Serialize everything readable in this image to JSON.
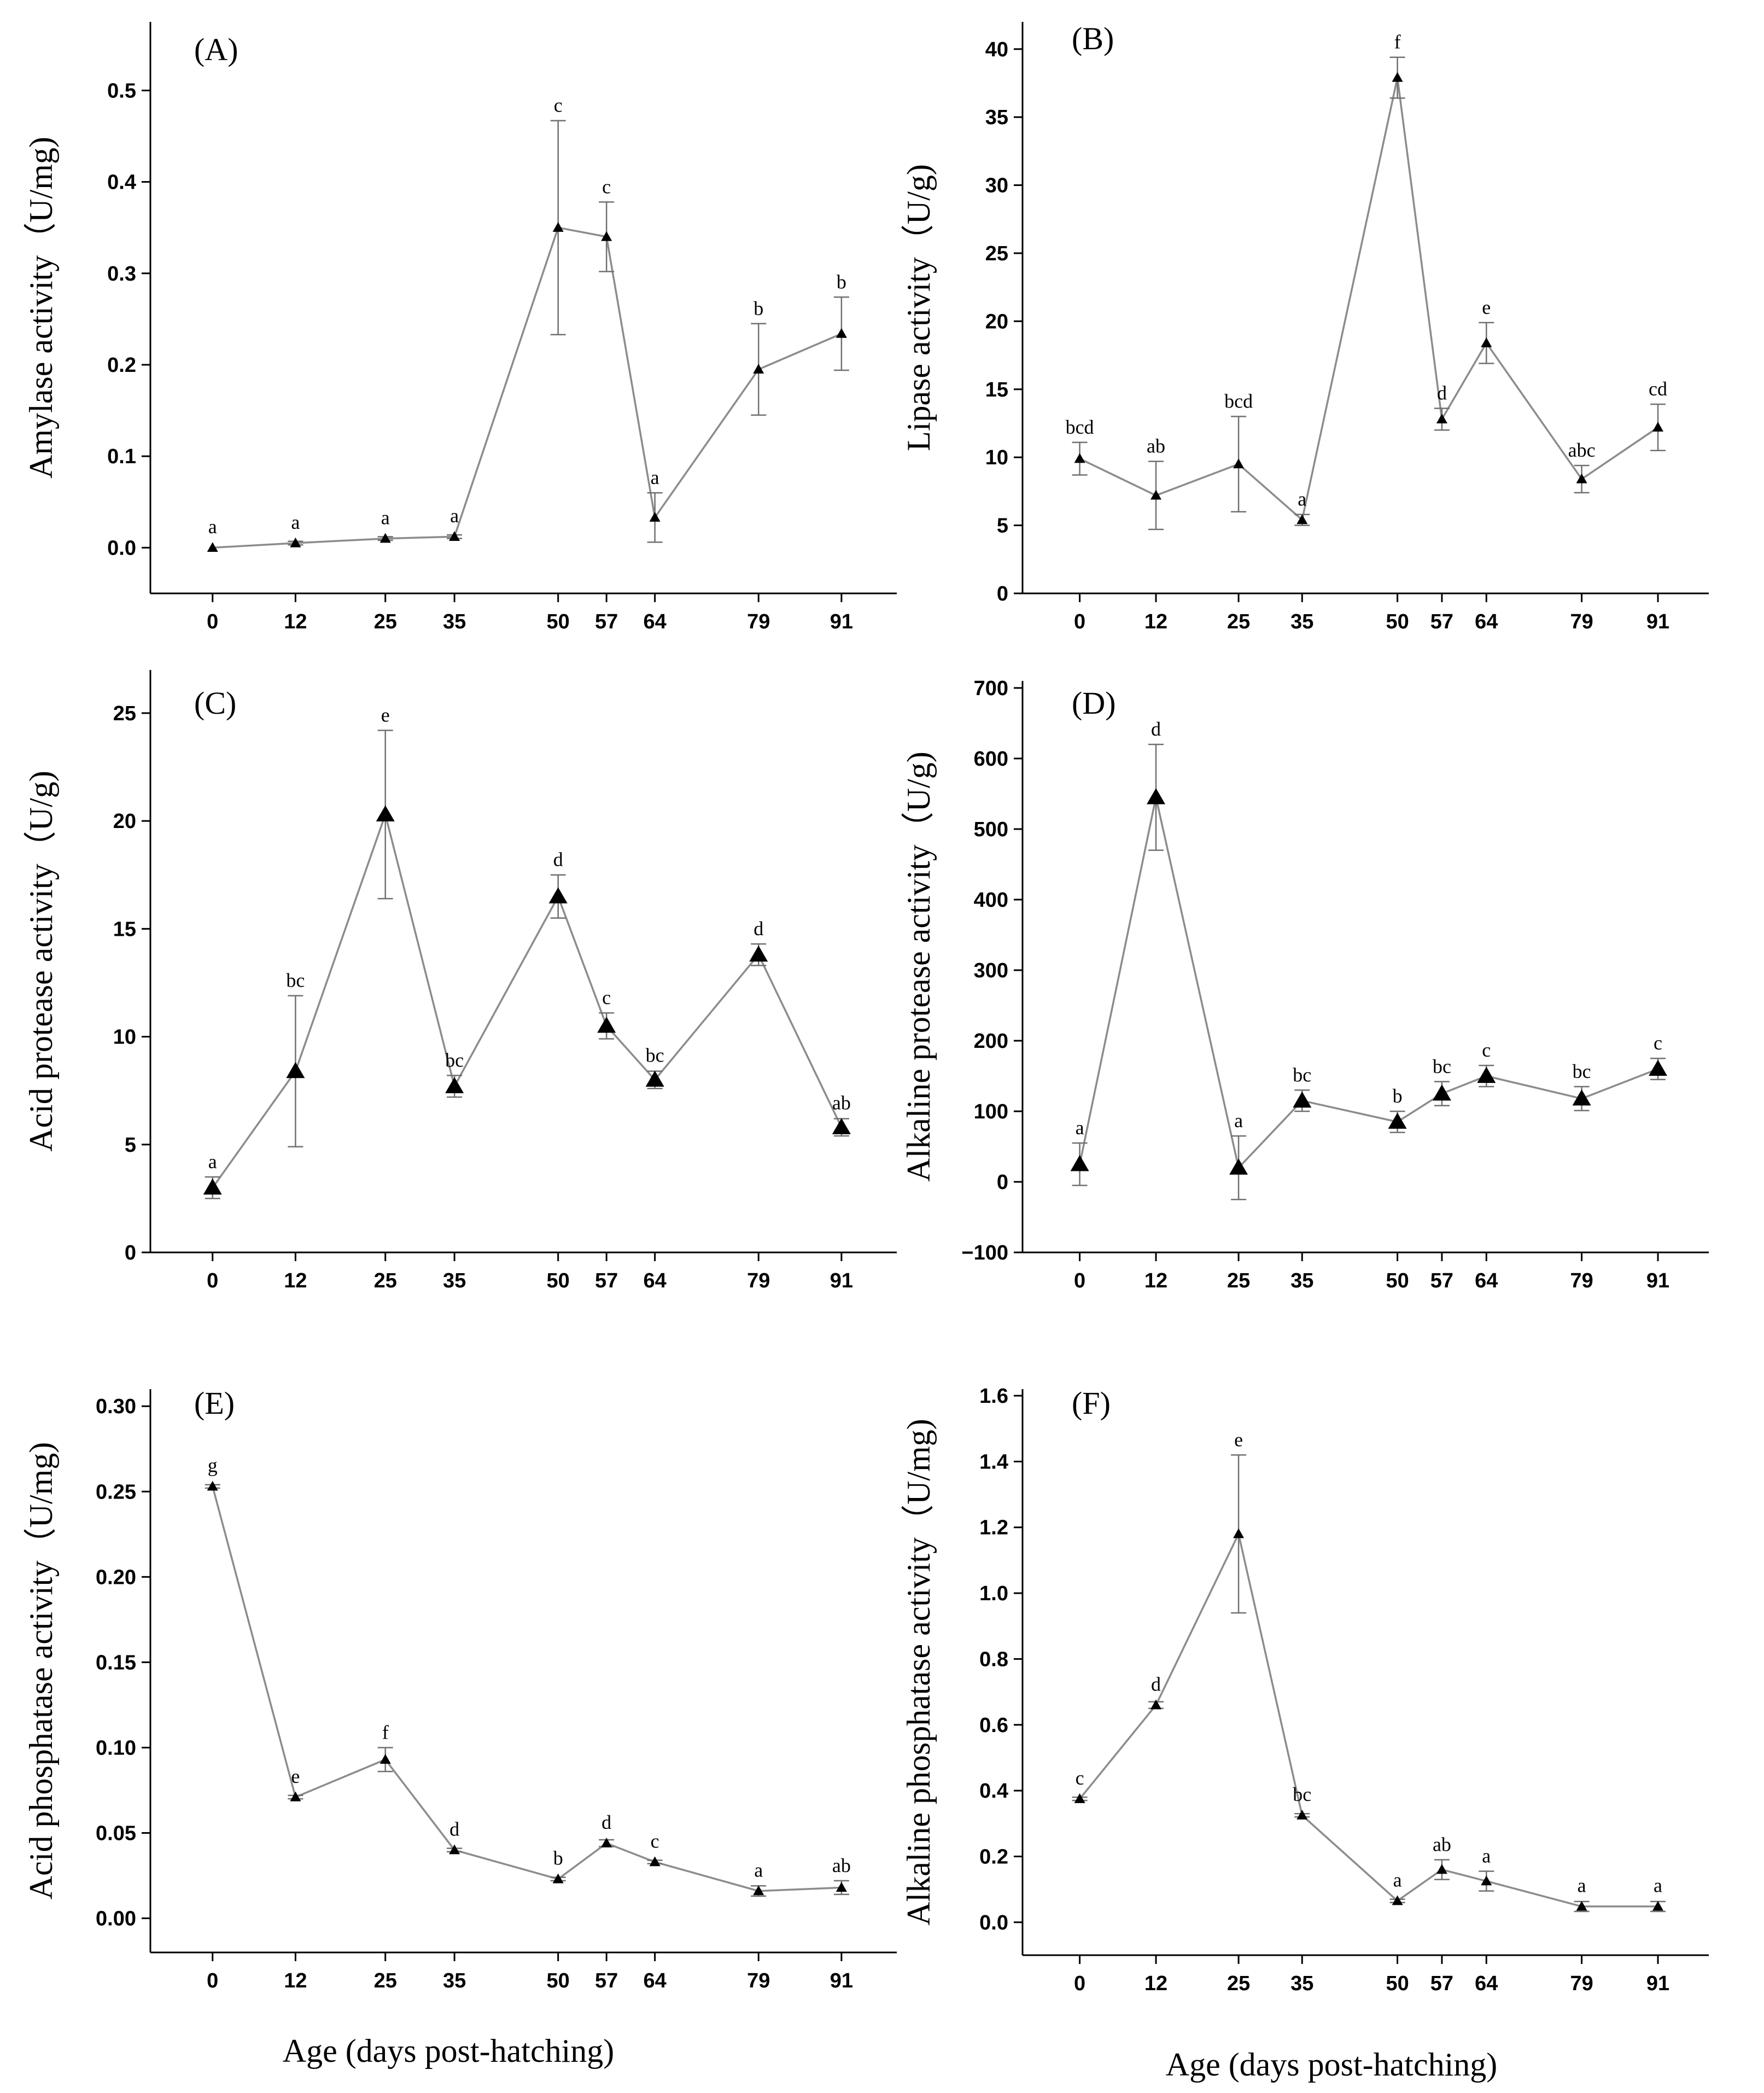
{
  "figure": {
    "xlabel_left": "Age (days post-hatching)",
    "xlabel_right": "Age (days post-hatching)",
    "colors": {
      "line": "#8c8c8c",
      "marker": "#000000",
      "axis": "#000000",
      "errorbar": "#707070"
    }
  },
  "chart_data": [
    {
      "type": "line",
      "panel": "(A)",
      "ylabel": "Amylase activity（U/mg)",
      "xlabel": "",
      "x": [
        0,
        12,
        25,
        35,
        50,
        57,
        64,
        79,
        91
      ],
      "xlim": [
        -9,
        99
      ],
      "ylim": [
        -0.05,
        0.575
      ],
      "yticks": [
        0.0,
        0.1,
        0.2,
        0.3,
        0.4,
        0.5
      ],
      "ytick_labels": [
        "0.0",
        "0.1",
        "0.2",
        "0.3",
        "0.4",
        "0.5"
      ],
      "series": [
        {
          "values": [
            0.0,
            0.005,
            0.01,
            0.012,
            0.35,
            0.34,
            0.033,
            0.195,
            0.234
          ],
          "errors": [
            0.0,
            0.002,
            0.002,
            0.002,
            0.117,
            0.038,
            0.027,
            0.05,
            0.04
          ],
          "letters": [
            "a",
            "a",
            "a",
            "a",
            "c",
            "c",
            "a",
            "b",
            "b"
          ]
        }
      ],
      "marker_size": "small"
    },
    {
      "type": "line",
      "panel": "(B)",
      "ylabel": "Lipase activity（U/g)",
      "xlabel": "",
      "x": [
        0,
        12,
        25,
        35,
        50,
        57,
        64,
        79,
        91
      ],
      "xlim": [
        -9,
        99
      ],
      "ylim": [
        0,
        42
      ],
      "yticks": [
        0,
        5,
        10,
        15,
        20,
        25,
        30,
        35,
        40
      ],
      "ytick_labels": [
        "0",
        "5",
        "10",
        "15",
        "20",
        "25",
        "30",
        "35",
        "40"
      ],
      "series": [
        {
          "values": [
            9.9,
            7.2,
            9.5,
            5.4,
            37.9,
            12.8,
            18.4,
            8.4,
            12.2
          ],
          "errors": [
            1.2,
            2.5,
            3.5,
            0.4,
            1.5,
            0.8,
            1.5,
            1.0,
            1.7
          ],
          "letters": [
            "bcd",
            "ab",
            "bcd",
            "a",
            "f",
            "d",
            "e",
            "abc",
            "cd"
          ]
        }
      ],
      "marker_size": "small"
    },
    {
      "type": "line",
      "panel": "(C)",
      "ylabel": "Acid protease activity（U/g)",
      "xlabel": "",
      "x": [
        0,
        12,
        25,
        35,
        50,
        57,
        64,
        79,
        91
      ],
      "xlim": [
        -9,
        99
      ],
      "ylim": [
        0,
        27
      ],
      "yticks": [
        0,
        5,
        10,
        15,
        20,
        25
      ],
      "ytick_labels": [
        "0",
        "5",
        "10",
        "15",
        "20",
        "25"
      ],
      "series": [
        {
          "values": [
            3.0,
            8.4,
            20.3,
            7.7,
            16.5,
            10.5,
            8.0,
            13.8,
            5.8
          ],
          "errors": [
            0.5,
            3.5,
            3.9,
            0.5,
            1.0,
            0.6,
            0.4,
            0.5,
            0.4
          ],
          "letters": [
            "a",
            "bc",
            "e",
            "bc",
            "d",
            "c",
            "bc",
            "d",
            "ab"
          ]
        }
      ],
      "marker_size": "large"
    },
    {
      "type": "line",
      "panel": "(D)",
      "ylabel": "Alkaline  protease activity（U/g)",
      "xlabel": "",
      "x": [
        0,
        12,
        25,
        35,
        50,
        57,
        64,
        79,
        91
      ],
      "xlim": [
        -9,
        99
      ],
      "ylim": [
        -100,
        710
      ],
      "yticks": [
        -100,
        0,
        100,
        200,
        300,
        400,
        500,
        600,
        700
      ],
      "ytick_labels": [
        "−100",
        "0",
        "100",
        "200",
        "300",
        "400",
        "500",
        "600",
        "700"
      ],
      "series": [
        {
          "values": [
            25,
            545,
            20,
            115,
            85,
            125,
            150,
            118,
            160
          ],
          "errors": [
            30,
            75,
            45,
            15,
            15,
            17,
            15,
            17,
            15
          ],
          "letters": [
            "a",
            "d",
            "a",
            "bc",
            "b",
            "bc",
            "c",
            "bc",
            "c"
          ]
        }
      ],
      "marker_size": "large"
    },
    {
      "type": "line",
      "panel": "(E)",
      "ylabel": "Acid phosphatase activity（U/mg)",
      "xlabel": "Age (days post-hatching)",
      "x": [
        0,
        12,
        25,
        35,
        50,
        57,
        64,
        79,
        91
      ],
      "xlim": [
        -9,
        99
      ],
      "ylim": [
        -0.02,
        0.31
      ],
      "yticks": [
        0.0,
        0.05,
        0.1,
        0.15,
        0.2,
        0.25,
        0.3
      ],
      "ytick_labels": [
        "0.00",
        "0.05",
        "0.10",
        "0.15",
        "0.20",
        "0.25",
        "0.30"
      ],
      "series": [
        {
          "values": [
            0.253,
            0.071,
            0.093,
            0.04,
            0.023,
            0.044,
            0.033,
            0.016,
            0.018
          ],
          "errors": [
            0.001,
            0.001,
            0.007,
            0.001,
            0.001,
            0.002,
            0.001,
            0.003,
            0.004
          ],
          "letters": [
            "g",
            "e",
            "f",
            "d",
            "b",
            "d",
            "c",
            "a",
            "ab"
          ]
        }
      ],
      "marker_size": "small"
    },
    {
      "type": "line",
      "panel": "(F)",
      "ylabel": "Alkaline phosphatase activity（U/mg)",
      "xlabel": "Age (days post-hatching)",
      "x": [
        0,
        12,
        25,
        35,
        50,
        57,
        64,
        79,
        91
      ],
      "xlim": [
        -9,
        99
      ],
      "ylim": [
        -0.1,
        1.62
      ],
      "yticks": [
        0.0,
        0.2,
        0.4,
        0.6,
        0.8,
        1.0,
        1.2,
        1.4,
        1.6
      ],
      "ytick_labels": [
        "0.0",
        "0.2",
        "0.4",
        "0.6",
        "0.8",
        "1.0",
        "1.2",
        "1.4",
        "1.6"
      ],
      "series": [
        {
          "values": [
            0.375,
            0.66,
            1.18,
            0.325,
            0.065,
            0.16,
            0.125,
            0.048,
            0.048
          ],
          "errors": [
            0.005,
            0.01,
            0.24,
            0.005,
            0.005,
            0.03,
            0.03,
            0.015,
            0.015
          ],
          "letters": [
            "c",
            "d",
            "e",
            "bc",
            "a",
            "ab",
            "a",
            "a",
            "a"
          ]
        }
      ],
      "marker_size": "small"
    }
  ]
}
